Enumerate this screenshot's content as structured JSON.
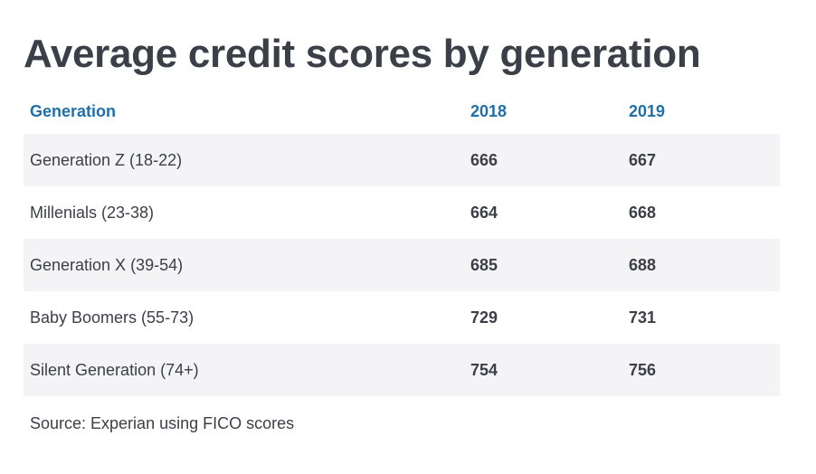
{
  "chart_data": {
    "type": "table",
    "title": "Average credit scores by generation",
    "columns": [
      "Generation",
      "2018",
      "2019"
    ],
    "rows": [
      {
        "generation": "Generation Z (18-22)",
        "y2018": "666",
        "y2019": "667"
      },
      {
        "generation": "Millenials (23-38)",
        "y2018": "664",
        "y2019": "668"
      },
      {
        "generation": "Generation X (39-54)",
        "y2018": "685",
        "y2019": "688"
      },
      {
        "generation": "Baby Boomers (55-73)",
        "y2018": "729",
        "y2019": "731"
      },
      {
        "generation": "Silent Generation (74+)",
        "y2018": "754",
        "y2019": "756"
      }
    ],
    "source": "Source: Experian using FICO scores"
  },
  "colors": {
    "header_text": "#1f6fa8",
    "stripe": "#f4f4f6",
    "body_text": "#3b3f47"
  }
}
